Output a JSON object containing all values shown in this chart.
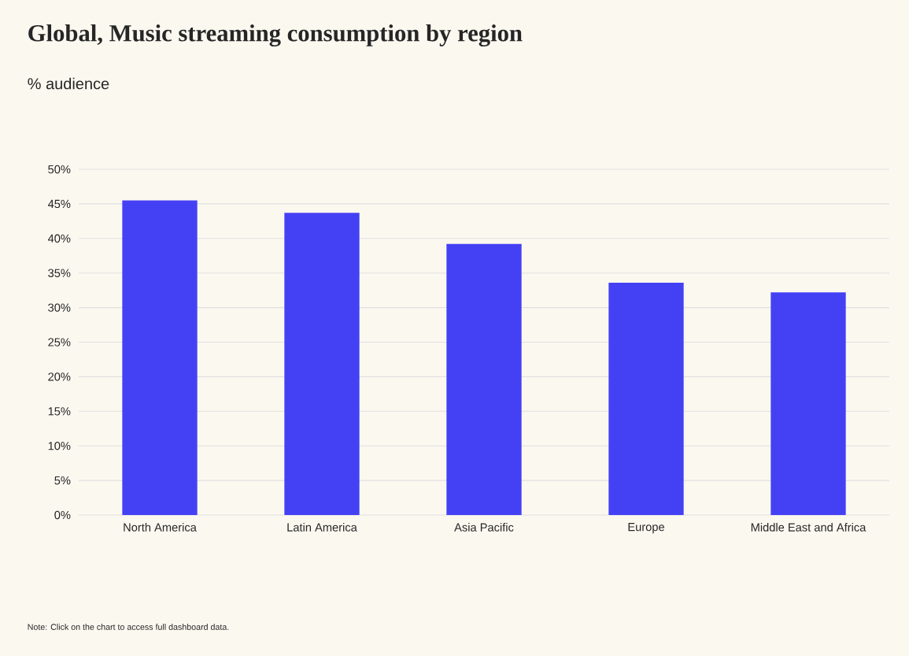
{
  "chart_data": {
    "type": "bar",
    "title": "Global, Music streaming consumption by region",
    "subtitle": "% audience",
    "categories": [
      "North America",
      "Latin America",
      "Asia Pacific",
      "Europe",
      "Middle East and Africa"
    ],
    "values": [
      45.5,
      43.7,
      39.2,
      33.6,
      32.2
    ],
    "color": "#4441f5",
    "ylim": [
      0,
      50
    ],
    "yticks": [
      {
        "value": 0,
        "label": "0%"
      },
      {
        "value": 5,
        "label": "5%"
      },
      {
        "value": 10,
        "label": "10%"
      },
      {
        "value": 15,
        "label": "15%"
      },
      {
        "value": 20,
        "label": "20%"
      },
      {
        "value": 25,
        "label": "25%"
      },
      {
        "value": 30,
        "label": "30%"
      },
      {
        "value": 35,
        "label": "35%"
      },
      {
        "value": 40,
        "label": "40%"
      },
      {
        "value": 45,
        "label": "45%"
      },
      {
        "value": 50,
        "label": "50%"
      }
    ],
    "grid": "y",
    "annotations": [
      "Note: Click on the chart to access full dashboard data."
    ]
  }
}
